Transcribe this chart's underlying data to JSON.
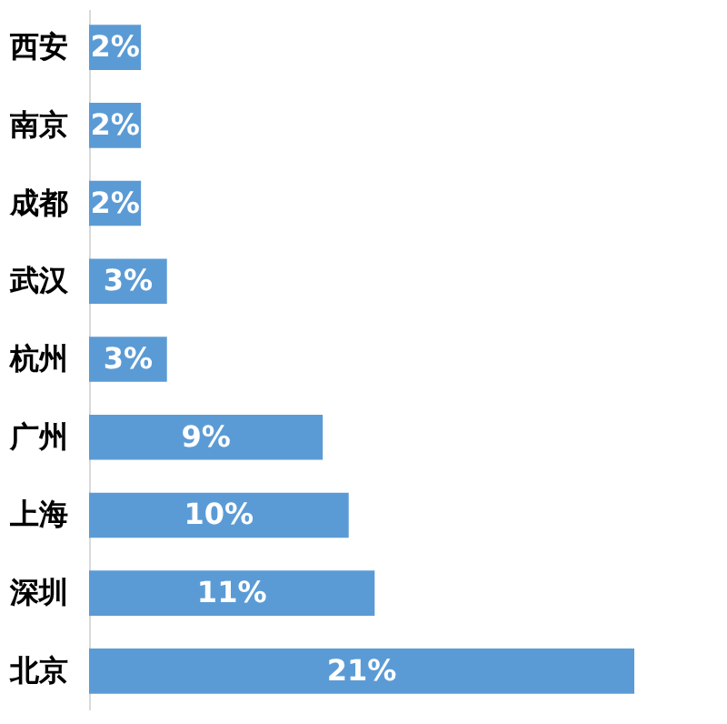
{
  "chart_data": {
    "type": "bar",
    "orientation": "horizontal",
    "categories": [
      "西安",
      "南京",
      "成都",
      "武汉",
      "杭州",
      "广州",
      "上海",
      "深圳",
      "北京"
    ],
    "values": [
      2,
      2,
      2,
      3,
      3,
      9,
      10,
      11,
      21
    ],
    "color": "#5b9bd5",
    "data_labels": true,
    "value_labels": [
      "2%",
      "2%",
      "2%",
      "3%",
      "3%",
      "9%",
      "10%",
      "11%",
      "21%"
    ],
    "xlim": [
      0,
      21
    ],
    "tick_labels": "y"
  }
}
